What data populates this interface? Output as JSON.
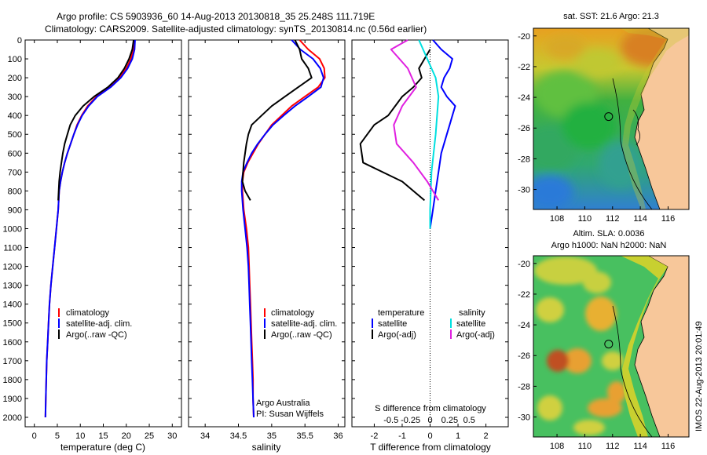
{
  "title": {
    "line1": "Argo profile: CS 5903936_60 14-Aug-2013 20130818_35 25.248S 111.719E",
    "line2": "Climatology: CARS2009. Satellite-adjusted climatology: synTS_20130814.nc (0.56d earlier)"
  },
  "colors": {
    "climatology": "#ff0000",
    "satellite_adj": "#0000ff",
    "argo": "#000000",
    "sal_satellite": "#00e0e0",
    "sal_argo": "#e020e0",
    "land": "#f7c79a"
  },
  "annotations": {
    "credit1": "Argo Australia",
    "credit2": "PI: Susan Wijffels",
    "s_diff_label": "S difference from climatology",
    "imos_stamp": "IMOS 22-Aug-2013 20:01:49"
  },
  "legend_profiles": {
    "items": [
      "climatology",
      "satellite-adj. clim.",
      "Argo(..raw -QC)"
    ]
  },
  "legend_diff": {
    "col1_header": "temperature",
    "col2_header": "salinity",
    "col1_items": [
      "satellite",
      "Argo(-adj)"
    ],
    "col2_items": [
      "satellite",
      "Argo(-adj)"
    ]
  },
  "maps": {
    "sst_title": "sat. SST: 21.6 Argo: 21.3",
    "sla_title1": "Altim. SLA: 0.0036",
    "sla_title2": "Argo h1000: NaN h2000: NaN",
    "lon_ticks": [
      "108",
      "110",
      "112",
      "114",
      "116"
    ],
    "lat_ticks": [
      "-20",
      "-22",
      "-24",
      "-26",
      "-28",
      "-30"
    ],
    "argo_lon": 111.72,
    "argo_lat": -25.25
  },
  "chart_data": [
    {
      "type": "line",
      "id": "temperature",
      "xlabel": "temperature (deg C)",
      "xlim": [
        -2,
        32
      ],
      "ylim": [
        0,
        2050
      ],
      "x_ticks": [
        "0",
        "5",
        "10",
        "15",
        "20",
        "25",
        "30"
      ],
      "y_ticks": [
        "0",
        "100",
        "200",
        "300",
        "400",
        "500",
        "600",
        "700",
        "800",
        "900",
        "1000",
        "1100",
        "1200",
        "1300",
        "1400",
        "1500",
        "1600",
        "1700",
        "1800",
        "1900",
        "2000"
      ],
      "series": [
        {
          "name": "climatology",
          "color": "#ff0000",
          "points": [
            [
              21.6,
              0
            ],
            [
              21.5,
              50
            ],
            [
              21.0,
              100
            ],
            [
              20.0,
              150
            ],
            [
              18.5,
              200
            ],
            [
              16.3,
              250
            ],
            [
              13.5,
              300
            ],
            [
              11.6,
              350
            ],
            [
              10.3,
              400
            ],
            [
              9.3,
              450
            ],
            [
              8.6,
              500
            ],
            [
              7.9,
              550
            ],
            [
              7.2,
              600
            ],
            [
              6.6,
              650
            ],
            [
              6.1,
              700
            ],
            [
              5.7,
              750
            ],
            [
              5.4,
              800
            ],
            [
              5.2,
              900
            ],
            [
              4.8,
              1000
            ],
            [
              4.4,
              1100
            ],
            [
              4.0,
              1200
            ],
            [
              3.6,
              1300
            ],
            [
              3.3,
              1400
            ],
            [
              3.1,
              1500
            ],
            [
              2.9,
              1600
            ],
            [
              2.7,
              1700
            ],
            [
              2.6,
              1800
            ],
            [
              2.5,
              1900
            ],
            [
              2.4,
              2000
            ]
          ]
        },
        {
          "name": "satellite-adj. clim.",
          "color": "#0000ff",
          "points": [
            [
              21.9,
              0
            ],
            [
              21.8,
              50
            ],
            [
              21.3,
              100
            ],
            [
              20.3,
              150
            ],
            [
              18.8,
              200
            ],
            [
              16.6,
              250
            ],
            [
              13.7,
              300
            ],
            [
              11.8,
              350
            ],
            [
              10.4,
              400
            ],
            [
              9.4,
              450
            ],
            [
              8.6,
              500
            ],
            [
              7.9,
              550
            ],
            [
              7.2,
              600
            ],
            [
              6.6,
              650
            ],
            [
              6.1,
              700
            ],
            [
              5.7,
              750
            ],
            [
              5.4,
              800
            ],
            [
              5.2,
              900
            ],
            [
              4.8,
              1000
            ],
            [
              4.4,
              1100
            ],
            [
              4.0,
              1200
            ],
            [
              3.6,
              1300
            ],
            [
              3.3,
              1400
            ],
            [
              3.1,
              1500
            ],
            [
              2.9,
              1600
            ],
            [
              2.7,
              1700
            ],
            [
              2.6,
              1800
            ],
            [
              2.5,
              1900
            ],
            [
              2.4,
              2000
            ]
          ]
        },
        {
          "name": "Argo(..raw -QC)",
          "color": "#000000",
          "points": [
            [
              21.6,
              0
            ],
            [
              21.3,
              50
            ],
            [
              20.6,
              100
            ],
            [
              19.6,
              150
            ],
            [
              18.2,
              200
            ],
            [
              16.0,
              250
            ],
            [
              13.0,
              300
            ],
            [
              10.6,
              350
            ],
            [
              8.9,
              400
            ],
            [
              7.8,
              450
            ],
            [
              7.2,
              500
            ],
            [
              6.6,
              550
            ],
            [
              6.2,
              600
            ],
            [
              5.9,
              650
            ],
            [
              5.6,
              700
            ],
            [
              5.4,
              750
            ],
            [
              5.3,
              800
            ],
            [
              5.2,
              850
            ]
          ]
        }
      ]
    },
    {
      "type": "line",
      "id": "salinity",
      "xlabel": "salinity",
      "xlim": [
        33.75,
        36.1
      ],
      "ylim": [
        0,
        2050
      ],
      "x_ticks": [
        "34",
        "34.5",
        "35",
        "35.5",
        "36"
      ],
      "series": [
        {
          "name": "climatology",
          "color": "#ff0000",
          "points": [
            [
              35.42,
              0
            ],
            [
              35.55,
              50
            ],
            [
              35.72,
              100
            ],
            [
              35.79,
              150
            ],
            [
              35.8,
              200
            ],
            [
              35.7,
              250
            ],
            [
              35.5,
              300
            ],
            [
              35.3,
              350
            ],
            [
              35.15,
              400
            ],
            [
              35.0,
              450
            ],
            [
              34.9,
              500
            ],
            [
              34.8,
              550
            ],
            [
              34.72,
              600
            ],
            [
              34.64,
              650
            ],
            [
              34.58,
              700
            ],
            [
              34.56,
              750
            ],
            [
              34.56,
              800
            ],
            [
              34.58,
              900
            ],
            [
              34.62,
              1000
            ],
            [
              34.65,
              1100
            ],
            [
              34.66,
              1200
            ],
            [
              34.67,
              1300
            ],
            [
              34.68,
              1400
            ],
            [
              34.69,
              1500
            ],
            [
              34.7,
              1600
            ],
            [
              34.71,
              1700
            ],
            [
              34.72,
              1800
            ],
            [
              34.72,
              1900
            ],
            [
              34.73,
              2000
            ]
          ]
        },
        {
          "name": "satellite-adj. clim.",
          "color": "#0000ff",
          "points": [
            [
              35.3,
              0
            ],
            [
              35.43,
              50
            ],
            [
              35.62,
              100
            ],
            [
              35.73,
              150
            ],
            [
              35.78,
              200
            ],
            [
              35.74,
              250
            ],
            [
              35.55,
              300
            ],
            [
              35.35,
              350
            ],
            [
              35.18,
              400
            ],
            [
              35.02,
              450
            ],
            [
              34.9,
              500
            ],
            [
              34.79,
              550
            ],
            [
              34.7,
              600
            ],
            [
              34.63,
              650
            ],
            [
              34.57,
              700
            ],
            [
              34.55,
              750
            ],
            [
              34.55,
              800
            ],
            [
              34.57,
              900
            ],
            [
              34.6,
              1000
            ],
            [
              34.63,
              1100
            ],
            [
              34.65,
              1200
            ],
            [
              34.66,
              1300
            ],
            [
              34.67,
              1400
            ],
            [
              34.68,
              1500
            ],
            [
              34.69,
              1600
            ],
            [
              34.7,
              1700
            ],
            [
              34.71,
              1800
            ],
            [
              34.72,
              1900
            ],
            [
              34.73,
              2000
            ]
          ]
        },
        {
          "name": "Argo(..raw -QC)",
          "color": "#000000",
          "points": [
            [
              35.35,
              0
            ],
            [
              35.42,
              50
            ],
            [
              35.45,
              100
            ],
            [
              35.55,
              150
            ],
            [
              35.6,
              200
            ],
            [
              35.4,
              250
            ],
            [
              35.2,
              300
            ],
            [
              35.0,
              350
            ],
            [
              34.85,
              400
            ],
            [
              34.7,
              450
            ],
            [
              34.65,
              500
            ],
            [
              34.62,
              550
            ],
            [
              34.6,
              600
            ],
            [
              34.58,
              650
            ],
            [
              34.57,
              700
            ],
            [
              34.56,
              750
            ],
            [
              34.6,
              800
            ],
            [
              34.68,
              850
            ]
          ]
        }
      ]
    },
    {
      "type": "line",
      "id": "difference",
      "xlabel": "T difference from climatology",
      "xlabel_top": "S difference from climatology",
      "xlim": [
        -2.8,
        2.8
      ],
      "ylim": [
        0,
        2050
      ],
      "x_ticks": [
        "-2",
        "-1",
        "0",
        "1",
        "2"
      ],
      "x_ticks_top": [
        "-0.5",
        "-0.25",
        "0",
        "0.25",
        "0.5"
      ],
      "series": [
        {
          "name": "temperature satellite",
          "color": "#0000ff",
          "points": [
            [
              0.1,
              0
            ],
            [
              0.4,
              50
            ],
            [
              0.8,
              100
            ],
            [
              0.7,
              150
            ],
            [
              0.5,
              200
            ],
            [
              0.4,
              250
            ],
            [
              0.6,
              300
            ],
            [
              0.9,
              350
            ],
            [
              0.8,
              400
            ],
            [
              0.7,
              450
            ],
            [
              0.6,
              500
            ],
            [
              0.4,
              600
            ],
            [
              0.3,
              700
            ],
            [
              0.2,
              800
            ],
            [
              0.1,
              900
            ],
            [
              0.0,
              1000
            ]
          ]
        },
        {
          "name": "temperature Argo(-adj)",
          "color": "#000000",
          "points": [
            [
              0.0,
              50
            ],
            [
              -0.2,
              100
            ],
            [
              -0.4,
              150
            ],
            [
              -0.3,
              200
            ],
            [
              -0.6,
              250
            ],
            [
              -1.0,
              300
            ],
            [
              -1.5,
              400
            ],
            [
              -2.0,
              450
            ],
            [
              -2.5,
              550
            ],
            [
              -2.4,
              650
            ],
            [
              -1.0,
              750
            ],
            [
              -0.2,
              850
            ]
          ]
        },
        {
          "name": "salinity satellite",
          "color": "#00e0e0",
          "points": [
            [
              -0.4,
              0
            ],
            [
              -0.1,
              100
            ],
            [
              0.2,
              200
            ],
            [
              0.3,
              300
            ],
            [
              0.2,
              500
            ],
            [
              0.05,
              700
            ],
            [
              0.0,
              900
            ],
            [
              0.0,
              1000
            ]
          ]
        },
        {
          "name": "salinity Argo(-adj)",
          "color": "#e020e0",
          "points": [
            [
              -0.8,
              0
            ],
            [
              -1.4,
              50
            ],
            [
              -0.8,
              150
            ],
            [
              -0.5,
              250
            ],
            [
              -1.0,
              350
            ],
            [
              -1.3,
              450
            ],
            [
              -1.2,
              550
            ],
            [
              -0.6,
              650
            ],
            [
              -0.1,
              750
            ],
            [
              0.3,
              850
            ]
          ]
        }
      ]
    }
  ]
}
